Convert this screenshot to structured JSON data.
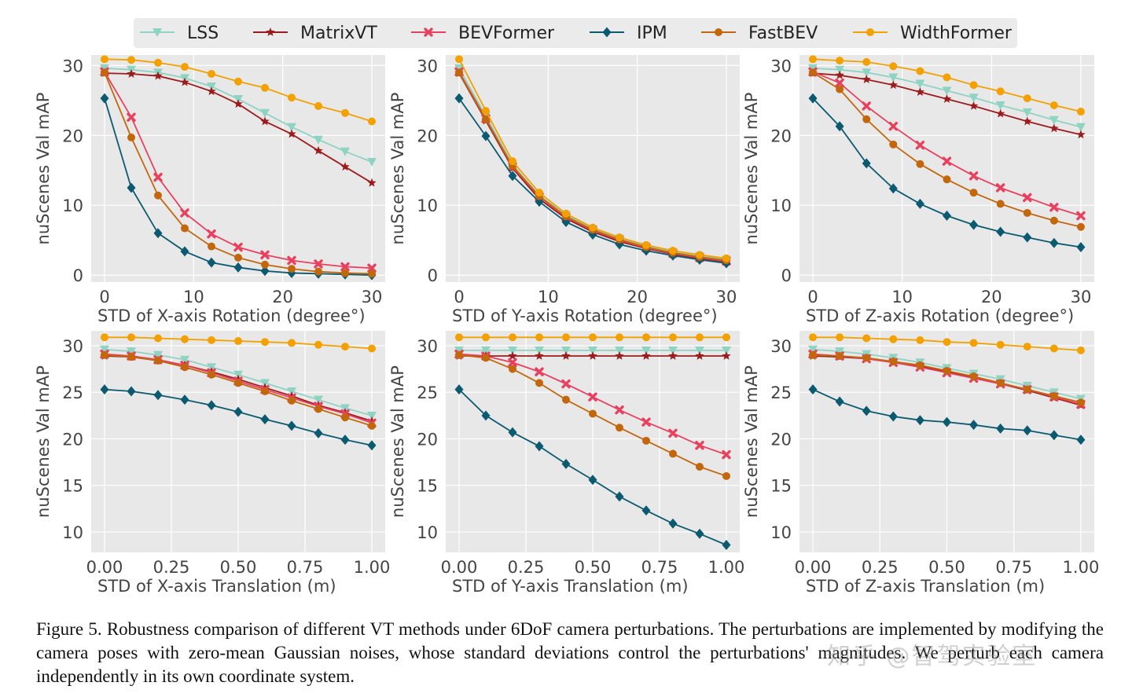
{
  "colors": {
    "LSS": "#8fd3c3",
    "MatrixVT": "#9b1c1c",
    "BEVFormer": "#e8405f",
    "IPM": "#0b5a70",
    "FastBEV": "#c2670c",
    "WidthFormer": "#f2a100",
    "plot_bg": "#e8e8e8",
    "grid": "#ffffff"
  },
  "legend": [
    {
      "name": "LSS",
      "marker": "triangle-down"
    },
    {
      "name": "MatrixVT",
      "marker": "star"
    },
    {
      "name": "BEVFormer",
      "marker": "x"
    },
    {
      "name": "IPM",
      "marker": "diamond"
    },
    {
      "name": "FastBEV",
      "marker": "circle"
    },
    {
      "name": "WidthFormer",
      "marker": "circle"
    }
  ],
  "chart_data": [
    {
      "type": "line",
      "title": "",
      "xlabel": "STD of X-axis Rotation (degree°)",
      "ylabel": "nuScenes Val mAP",
      "x": [
        0,
        3,
        6,
        9,
        12,
        15,
        18,
        21,
        24,
        27,
        30
      ],
      "xlim": [
        -1.5,
        31.5
      ],
      "ylim": [
        -1,
        31.5
      ],
      "xticks": [
        0,
        10,
        20,
        30
      ],
      "xtick_labels": [
        "0",
        "10",
        "20",
        "30"
      ],
      "yticks": [
        0,
        10,
        20,
        30
      ],
      "ytick_labels": [
        "0",
        "10",
        "20",
        "30"
      ],
      "series": [
        {
          "name": "LSS",
          "values": [
            29.6,
            29.4,
            29.0,
            28.2,
            27.0,
            25.2,
            23.2,
            21.2,
            19.4,
            17.7,
            16.2
          ]
        },
        {
          "name": "MatrixVT",
          "values": [
            28.9,
            28.8,
            28.5,
            27.6,
            26.3,
            24.5,
            22.0,
            20.2,
            17.8,
            15.5,
            13.2
          ]
        },
        {
          "name": "BEVFormer",
          "values": [
            29.1,
            22.6,
            14.0,
            8.9,
            5.9,
            4.0,
            2.9,
            2.1,
            1.6,
            1.2,
            1.0
          ]
        },
        {
          "name": "IPM",
          "values": [
            25.3,
            12.5,
            6.0,
            3.4,
            1.8,
            1.1,
            0.6,
            0.3,
            0.2,
            0.1,
            0.0
          ]
        },
        {
          "name": "FastBEV",
          "values": [
            29.0,
            19.7,
            11.4,
            6.7,
            4.1,
            2.5,
            1.5,
            0.9,
            0.5,
            0.3,
            0.2
          ]
        },
        {
          "name": "WidthFormer",
          "values": [
            30.9,
            30.8,
            30.4,
            29.8,
            28.8,
            27.7,
            26.8,
            25.4,
            24.2,
            23.2,
            22.0
          ]
        }
      ]
    },
    {
      "type": "line",
      "title": "",
      "xlabel": "STD of Y-axis Rotation (degree°)",
      "ylabel": "nuScenes Val mAP",
      "x": [
        0,
        3,
        6,
        9,
        12,
        15,
        18,
        21,
        24,
        27,
        30
      ],
      "xlim": [
        -1.5,
        31.5
      ],
      "ylim": [
        -1,
        31.5
      ],
      "xticks": [
        0,
        10,
        20,
        30
      ],
      "xtick_labels": [
        "0",
        "10",
        "20",
        "30"
      ],
      "yticks": [
        0,
        10,
        20,
        30
      ],
      "ytick_labels": [
        "0",
        "10",
        "20",
        "30"
      ],
      "series": [
        {
          "name": "LSS",
          "values": [
            29.6,
            22.8,
            15.8,
            11.4,
            8.6,
            6.6,
            5.2,
            4.1,
            3.3,
            2.7,
            2.2
          ]
        },
        {
          "name": "MatrixVT",
          "values": [
            28.9,
            22.1,
            15.3,
            10.9,
            8.1,
            6.2,
            4.8,
            3.8,
            3.0,
            2.4,
            1.9
          ]
        },
        {
          "name": "BEVFormer",
          "values": [
            29.1,
            22.4,
            15.5,
            11.2,
            8.3,
            6.4,
            5.0,
            3.9,
            3.1,
            2.5,
            2.0
          ]
        },
        {
          "name": "IPM",
          "values": [
            25.3,
            19.9,
            14.2,
            10.5,
            7.6,
            5.8,
            4.4,
            3.5,
            2.8,
            2.2,
            1.7
          ]
        },
        {
          "name": "FastBEV",
          "values": [
            29.0,
            22.3,
            15.6,
            11.3,
            8.4,
            6.5,
            5.1,
            4.0,
            3.2,
            2.6,
            2.1
          ]
        },
        {
          "name": "WidthFormer",
          "values": [
            30.9,
            23.5,
            16.3,
            11.8,
            8.8,
            6.8,
            5.4,
            4.3,
            3.5,
            2.9,
            2.4
          ]
        }
      ]
    },
    {
      "type": "line",
      "title": "",
      "xlabel": "STD of Z-axis Rotation (degree°)",
      "ylabel": "nuScenes Val mAP",
      "x": [
        0,
        3,
        6,
        9,
        12,
        15,
        18,
        21,
        24,
        27,
        30
      ],
      "xlim": [
        -1.5,
        31.5
      ],
      "ylim": [
        -1,
        31.5
      ],
      "xticks": [
        0,
        10,
        20,
        30
      ],
      "xtick_labels": [
        "0",
        "10",
        "20",
        "30"
      ],
      "yticks": [
        0,
        10,
        20,
        30
      ],
      "ytick_labels": [
        "0",
        "10",
        "20",
        "30"
      ],
      "series": [
        {
          "name": "LSS",
          "values": [
            29.6,
            29.4,
            29.0,
            28.3,
            27.4,
            26.4,
            25.4,
            24.3,
            23.3,
            22.2,
            21.2
          ]
        },
        {
          "name": "MatrixVT",
          "values": [
            28.9,
            28.6,
            28.0,
            27.2,
            26.2,
            25.2,
            24.2,
            23.1,
            22.0,
            21.0,
            20.1
          ]
        },
        {
          "name": "BEVFormer",
          "values": [
            29.1,
            27.5,
            24.2,
            21.3,
            18.6,
            16.3,
            14.2,
            12.5,
            11.1,
            9.7,
            8.5
          ]
        },
        {
          "name": "IPM",
          "values": [
            25.3,
            21.3,
            16.0,
            12.4,
            10.2,
            8.5,
            7.2,
            6.2,
            5.4,
            4.6,
            4.0
          ]
        },
        {
          "name": "FastBEV",
          "values": [
            29.0,
            26.6,
            22.3,
            18.7,
            15.9,
            13.7,
            11.8,
            10.2,
            8.9,
            7.8,
            6.9
          ]
        },
        {
          "name": "WidthFormer",
          "values": [
            30.9,
            30.7,
            30.5,
            29.9,
            29.2,
            28.3,
            27.2,
            26.3,
            25.3,
            24.3,
            23.4
          ]
        }
      ]
    },
    {
      "type": "line",
      "title": "",
      "xlabel": "STD of X-axis Translation (m)",
      "ylabel": "nuScenes Val mAP",
      "x": [
        0,
        0.1,
        0.2,
        0.3,
        0.4,
        0.5,
        0.6,
        0.7,
        0.8,
        0.9,
        1.0
      ],
      "xlim": [
        -0.05,
        1.05
      ],
      "ylim": [
        7.8,
        31.6
      ],
      "xticks": [
        0,
        0.25,
        0.5,
        0.75,
        1.0
      ],
      "xtick_labels": [
        "0.00",
        "0.25",
        "0.50",
        "0.75",
        "1.00"
      ],
      "yticks": [
        10,
        15,
        20,
        25,
        30
      ],
      "ytick_labels": [
        "10",
        "15",
        "20",
        "25",
        "30"
      ],
      "series": [
        {
          "name": "LSS",
          "values": [
            29.6,
            29.4,
            29.0,
            28.5,
            27.7,
            26.9,
            26.0,
            25.1,
            24.2,
            23.3,
            22.5
          ]
        },
        {
          "name": "MatrixVT",
          "values": [
            28.9,
            28.8,
            28.4,
            27.9,
            27.2,
            26.4,
            25.5,
            24.6,
            23.6,
            22.8,
            21.9
          ]
        },
        {
          "name": "BEVFormer",
          "values": [
            29.1,
            28.9,
            28.5,
            27.9,
            27.1,
            26.2,
            25.3,
            24.4,
            23.5,
            22.7,
            21.7
          ]
        },
        {
          "name": "IPM",
          "values": [
            25.3,
            25.1,
            24.7,
            24.2,
            23.6,
            22.9,
            22.1,
            21.4,
            20.6,
            19.9,
            19.3
          ]
        },
        {
          "name": "FastBEV",
          "values": [
            29.0,
            28.8,
            28.4,
            27.7,
            26.9,
            26.0,
            25.1,
            24.1,
            23.2,
            22.3,
            21.4
          ]
        },
        {
          "name": "WidthFormer",
          "values": [
            30.9,
            30.9,
            30.8,
            30.7,
            30.6,
            30.5,
            30.4,
            30.3,
            30.1,
            29.9,
            29.7
          ]
        }
      ]
    },
    {
      "type": "line",
      "title": "",
      "xlabel": "STD of Y-axis Translation (m)",
      "ylabel": "nuScenes Val mAP",
      "x": [
        0,
        0.1,
        0.2,
        0.3,
        0.4,
        0.5,
        0.6,
        0.7,
        0.8,
        0.9,
        1.0
      ],
      "xlim": [
        -0.05,
        1.05
      ],
      "ylim": [
        7.8,
        31.6
      ],
      "xticks": [
        0,
        0.25,
        0.5,
        0.75,
        1.0
      ],
      "xtick_labels": [
        "0.00",
        "0.25",
        "0.50",
        "0.75",
        "1.00"
      ],
      "yticks": [
        10,
        15,
        20,
        25,
        30
      ],
      "ytick_labels": [
        "10",
        "15",
        "20",
        "25",
        "30"
      ],
      "series": [
        {
          "name": "LSS",
          "values": [
            29.5,
            29.5,
            29.5,
            29.5,
            29.5,
            29.5,
            29.5,
            29.5,
            29.5,
            29.5,
            29.5
          ]
        },
        {
          "name": "MatrixVT",
          "values": [
            28.9,
            28.9,
            28.9,
            28.9,
            28.9,
            28.9,
            28.9,
            28.9,
            28.9,
            28.9,
            28.9
          ]
        },
        {
          "name": "BEVFormer",
          "values": [
            29.1,
            28.9,
            28.2,
            27.2,
            25.9,
            24.5,
            23.1,
            21.8,
            20.6,
            19.3,
            18.3
          ]
        },
        {
          "name": "IPM",
          "values": [
            25.3,
            22.5,
            20.7,
            19.2,
            17.3,
            15.6,
            13.8,
            12.3,
            10.9,
            9.8,
            8.6
          ]
        },
        {
          "name": "FastBEV",
          "values": [
            29.0,
            28.7,
            27.5,
            26.0,
            24.2,
            22.7,
            21.2,
            19.8,
            18.4,
            17.0,
            16.0
          ]
        },
        {
          "name": "WidthFormer",
          "values": [
            30.9,
            30.9,
            30.9,
            30.9,
            30.9,
            30.9,
            30.9,
            30.9,
            30.9,
            30.9,
            30.9
          ]
        }
      ]
    },
    {
      "type": "line",
      "title": "",
      "xlabel": "STD of Z-axis Translation (m)",
      "ylabel": "nuScenes Val mAP",
      "x": [
        0,
        0.1,
        0.2,
        0.3,
        0.4,
        0.5,
        0.6,
        0.7,
        0.8,
        0.9,
        1.0
      ],
      "xlim": [
        -0.05,
        1.05
      ],
      "ylim": [
        7.8,
        31.6
      ],
      "xticks": [
        0,
        0.25,
        0.5,
        0.75,
        1.0
      ],
      "xtick_labels": [
        "0.00",
        "0.25",
        "0.50",
        "0.75",
        "1.00"
      ],
      "yticks": [
        10,
        15,
        20,
        25,
        30
      ],
      "ytick_labels": [
        "10",
        "15",
        "20",
        "25",
        "30"
      ],
      "series": [
        {
          "name": "LSS",
          "values": [
            29.6,
            29.4,
            29.1,
            28.7,
            28.2,
            27.6,
            27.0,
            26.4,
            25.7,
            25.0,
            24.3
          ]
        },
        {
          "name": "MatrixVT",
          "values": [
            28.9,
            28.8,
            28.6,
            28.3,
            27.8,
            27.2,
            26.6,
            25.9,
            25.2,
            24.4,
            23.6
          ]
        },
        {
          "name": "BEVFormer",
          "values": [
            29.1,
            28.9,
            28.6,
            28.2,
            27.7,
            27.1,
            26.5,
            25.9,
            25.3,
            24.5,
            23.7
          ]
        },
        {
          "name": "IPM",
          "values": [
            25.3,
            24.0,
            23.0,
            22.4,
            22.0,
            21.8,
            21.5,
            21.1,
            20.9,
            20.4,
            19.9
          ]
        },
        {
          "name": "FastBEV",
          "values": [
            29.0,
            28.9,
            28.7,
            28.3,
            27.9,
            27.3,
            26.7,
            26.0,
            25.3,
            24.6,
            23.9
          ]
        },
        {
          "name": "WidthFormer",
          "values": [
            30.9,
            30.9,
            30.8,
            30.7,
            30.6,
            30.4,
            30.3,
            30.1,
            29.9,
            29.7,
            29.5
          ]
        }
      ]
    }
  ],
  "caption": "Figure 5.  Robustness comparison of different VT methods under 6DoF camera perturbations.  The perturbations are implemented by modifying the camera poses with zero-mean Gaussian noises, whose standard deviations control the perturbations' magnitudes. We perturb each camera independently in its own coordinate system.",
  "watermark": "知乎 @智驾实验室"
}
